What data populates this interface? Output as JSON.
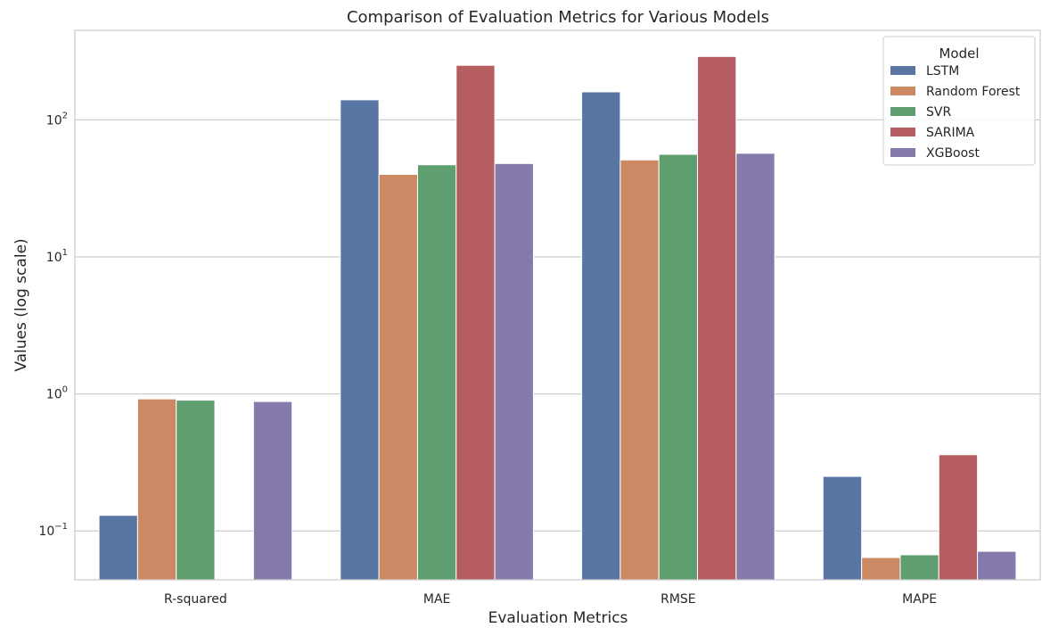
{
  "chart_data": {
    "type": "bar",
    "title": "Comparison of Evaluation Metrics for Various Models",
    "xlabel": "Evaluation Metrics",
    "ylabel": "Values (log scale)",
    "yscale": "log",
    "ylim": [
      0.044,
      450
    ],
    "yticks": [
      {
        "value": 0.1,
        "base": "10",
        "exp": "−1"
      },
      {
        "value": 1,
        "base": "10",
        "exp": "0"
      },
      {
        "value": 10,
        "base": "10",
        "exp": "1"
      },
      {
        "value": 100,
        "base": "10",
        "exp": "2"
      }
    ],
    "grid": "horizontal",
    "categories": [
      "R-squared",
      "MAE",
      "RMSE",
      "MAPE"
    ],
    "legend": {
      "title": "Model",
      "placement": "top-right"
    },
    "series": [
      {
        "name": "LSTM",
        "color": "#5875a4",
        "values": [
          0.13,
          140,
          160,
          0.25
        ]
      },
      {
        "name": "Random Forest",
        "color": "#cc8963",
        "values": [
          0.92,
          40,
          51,
          0.064
        ]
      },
      {
        "name": "SVR",
        "color": "#5f9e6e",
        "values": [
          0.9,
          47,
          56,
          0.067
        ]
      },
      {
        "name": "SARIMA",
        "color": "#b55d60",
        "values": [
          null,
          250,
          290,
          0.36
        ]
      },
      {
        "name": "XGBoost",
        "color": "#857aab",
        "values": [
          0.88,
          48,
          57,
          0.071
        ]
      }
    ]
  }
}
